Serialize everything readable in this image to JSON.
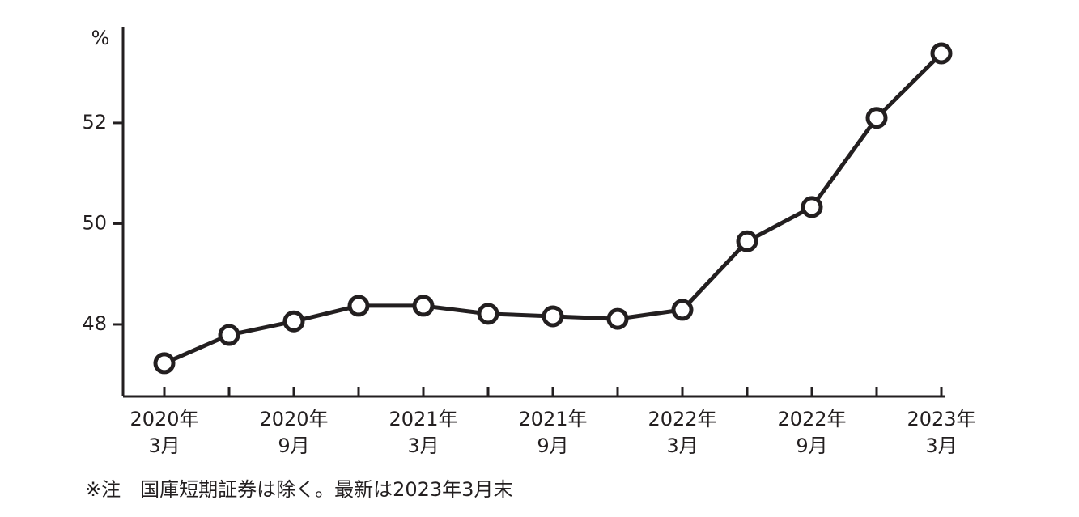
{
  "chart_data": {
    "type": "line",
    "unit_label": "%",
    "note": "※注　国庫短期証券は除く。最新は2023年3月末",
    "categories": [
      [
        "2020年",
        "3月"
      ],
      null,
      [
        "2020年",
        "9月"
      ],
      null,
      [
        "2021年",
        "3月"
      ],
      null,
      [
        "2021年",
        "9月"
      ],
      null,
      [
        "2022年",
        "3月"
      ],
      null,
      [
        "2022年",
        "9月"
      ],
      null,
      [
        "2023年",
        "3月"
      ]
    ],
    "values": [
      47.23,
      47.79,
      48.06,
      48.37,
      48.37,
      48.21,
      48.16,
      48.11,
      48.29,
      49.65,
      50.33,
      52.1,
      53.38
    ],
    "color": "#231f20",
    "ylim": [
      46.57,
      53.91
    ],
    "yticks": [
      48,
      50,
      52
    ]
  }
}
